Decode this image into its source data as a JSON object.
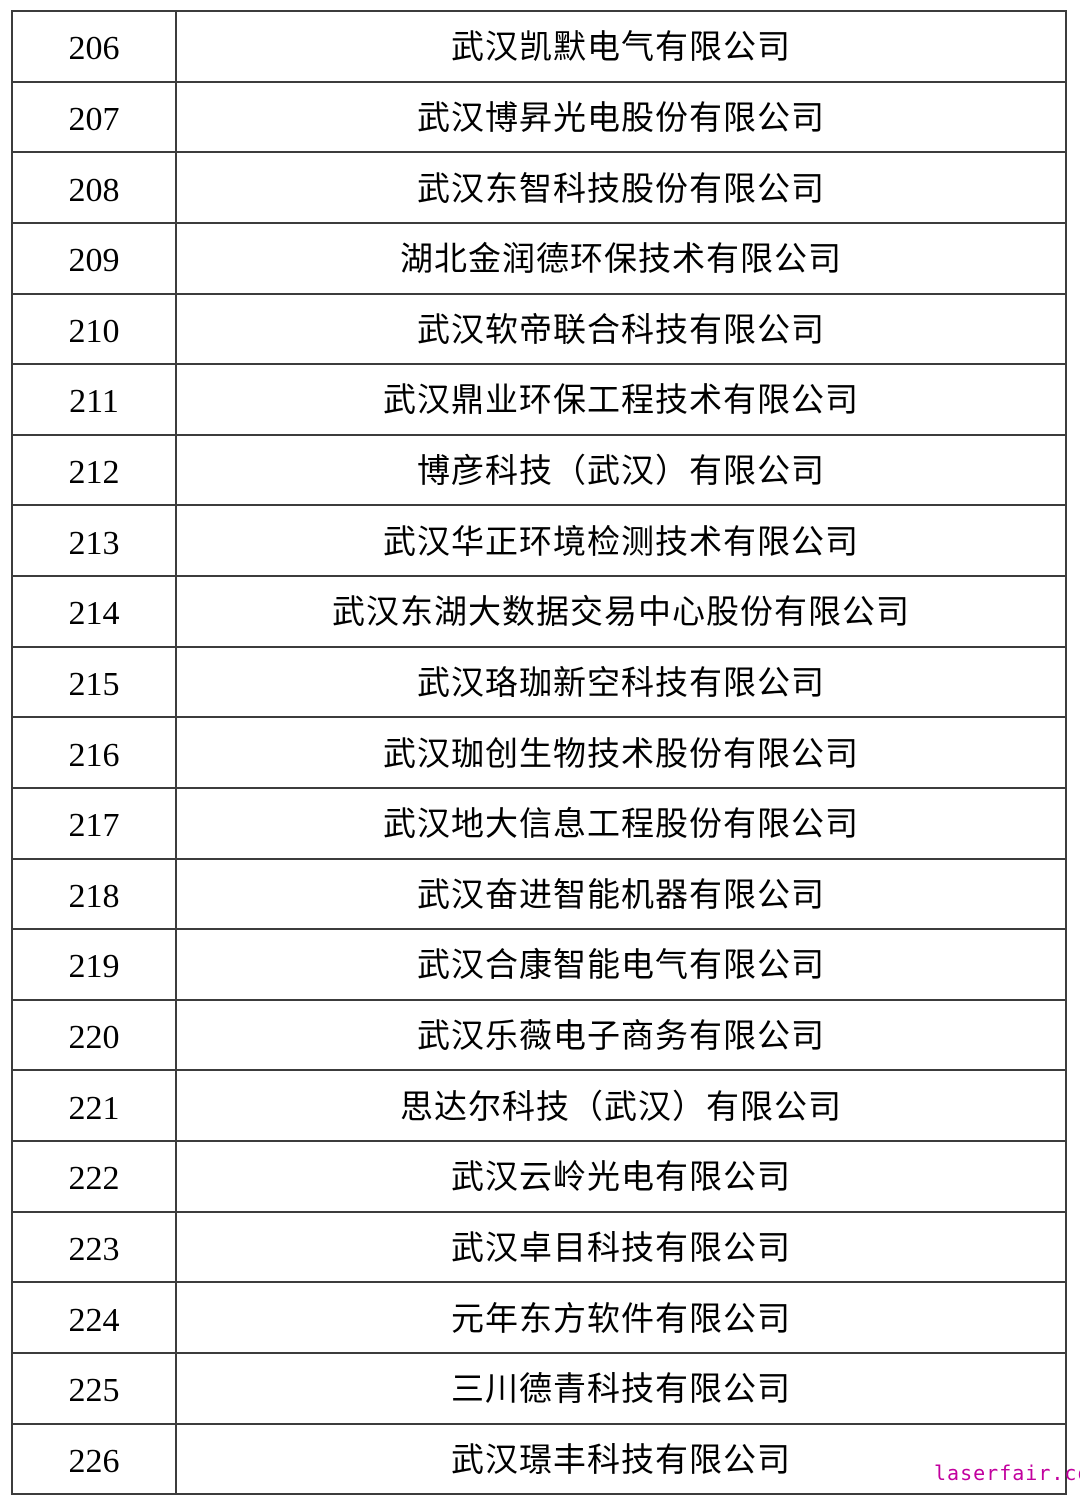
{
  "table": {
    "rows": [
      {
        "no": "206",
        "name": "武汉凯默电气有限公司"
      },
      {
        "no": "207",
        "name": "武汉博昇光电股份有限公司"
      },
      {
        "no": "208",
        "name": "武汉东智科技股份有限公司"
      },
      {
        "no": "209",
        "name": "湖北金润德环保技术有限公司"
      },
      {
        "no": "210",
        "name": "武汉软帝联合科技有限公司"
      },
      {
        "no": "211",
        "name": "武汉鼎业环保工程技术有限公司"
      },
      {
        "no": "212",
        "name": "博彦科技（武汉）有限公司"
      },
      {
        "no": "213",
        "name": "武汉华正环境检测技术有限公司"
      },
      {
        "no": "214",
        "name": "武汉东湖大数据交易中心股份有限公司"
      },
      {
        "no": "215",
        "name": "武汉珞珈新空科技有限公司"
      },
      {
        "no": "216",
        "name": "武汉珈创生物技术股份有限公司"
      },
      {
        "no": "217",
        "name": "武汉地大信息工程股份有限公司"
      },
      {
        "no": "218",
        "name": "武汉奋进智能机器有限公司"
      },
      {
        "no": "219",
        "name": "武汉合康智能电气有限公司"
      },
      {
        "no": "220",
        "name": "武汉乐薇电子商务有限公司"
      },
      {
        "no": "221",
        "name": "思达尔科技（武汉）有限公司"
      },
      {
        "no": "222",
        "name": "武汉云岭光电有限公司"
      },
      {
        "no": "223",
        "name": "武汉卓目科技有限公司"
      },
      {
        "no": "224",
        "name": "元年东方软件有限公司"
      },
      {
        "no": "225",
        "name": "三川德青科技有限公司"
      },
      {
        "no": "226",
        "name": "武汉璟丰科技有限公司"
      }
    ]
  },
  "watermark": {
    "text": "laserfair.com",
    "color": "#c2009e"
  },
  "colors": {
    "border": "#3c3c3c",
    "text": "#000000",
    "background": "#ffffff"
  }
}
